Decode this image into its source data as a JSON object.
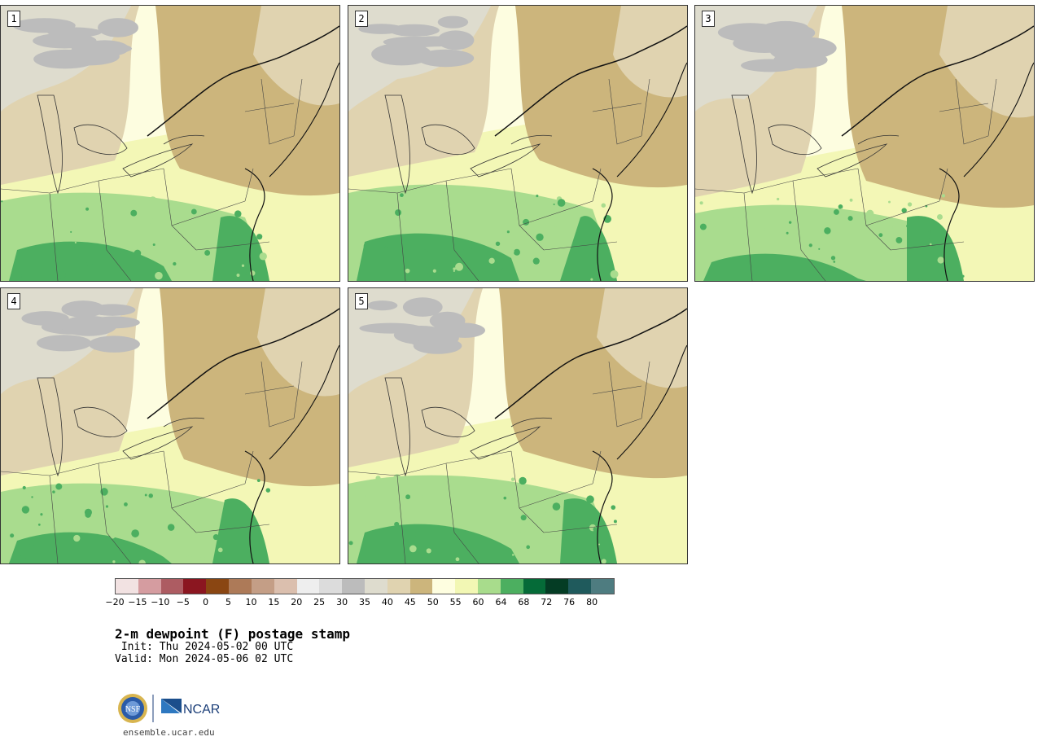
{
  "panels": [
    {
      "label": "1"
    },
    {
      "label": "2"
    },
    {
      "label": "3"
    },
    {
      "label": "4"
    },
    {
      "label": "5"
    }
  ],
  "colorbar": {
    "colors": [
      "#f2e2e2",
      "#d59ca0",
      "#ad5c62",
      "#8b1620",
      "#8a4612",
      "#ad7a58",
      "#c49e86",
      "#dbbfae",
      "#eeeeee",
      "#dcdcdc",
      "#bcbcbc",
      "#dedcce",
      "#e0d3b0",
      "#ccb57c",
      "#fefee0",
      "#f2f7b4",
      "#a8dc8c",
      "#4caf60",
      "#056b38",
      "#043c24",
      "#1f5a5c",
      "#4e7c80"
    ],
    "tick_labels": [
      "−20",
      "−15",
      "−10",
      "−5",
      "0",
      "5",
      "10",
      "15",
      "20",
      "25",
      "30",
      "35",
      "40",
      "45",
      "50",
      "55",
      "60",
      "64",
      "68",
      "72",
      "76",
      "80"
    ]
  },
  "title": "2-m dewpoint (F) postage stamp",
  "init_line": " Init: Thu 2024-05-02 00 UTC",
  "valid_line": "Valid: Mon 2024-05-06 02 UTC",
  "logo": {
    "nsf": "NSF",
    "ncar": "NCAR"
  },
  "footer": "ensemble.ucar.edu"
}
